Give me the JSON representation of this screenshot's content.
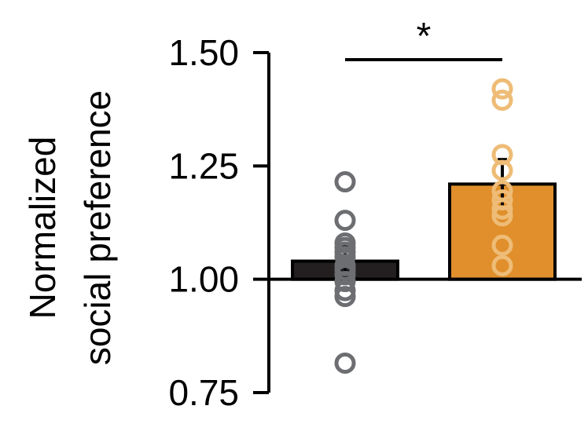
{
  "chart_data": {
    "type": "bar",
    "ylabel_line1": "Normalized",
    "ylabel_line2": "social preference",
    "ylim": [
      0.75,
      1.5
    ],
    "baseline": 1.0,
    "yticks": [
      0.75,
      1.0,
      1.25,
      1.5
    ],
    "ytick_labels": [
      "0.75",
      "1.00",
      "1.25",
      "1.50"
    ],
    "grid": false,
    "bars": [
      {
        "value": 1.04,
        "error": 0.035,
        "fill": "#231f20",
        "point_color": "#6d6e71",
        "points": [
          1.215,
          1.13,
          1.08,
          1.07,
          1.06,
          1.05,
          1.03,
          1.02,
          1.01,
          0.995,
          0.975,
          0.962,
          0.815
        ]
      },
      {
        "value": 1.21,
        "error": 0.055,
        "fill": "#e08f2c",
        "point_color": "#eebc76",
        "points": [
          1.42,
          1.395,
          1.275,
          1.24,
          1.195,
          1.175,
          1.155,
          1.14,
          1.075,
          1.03
        ]
      }
    ],
    "significance": {
      "label": "*",
      "from": 0,
      "to": 1
    }
  }
}
